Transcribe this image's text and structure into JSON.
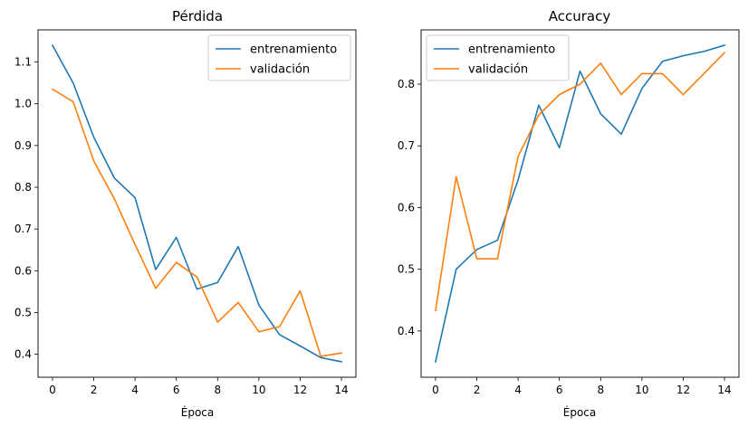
{
  "chart_data": [
    {
      "type": "line",
      "title": "Pérdida",
      "xlabel": "Época",
      "ylabel": "",
      "xlim": [
        -0.7,
        14.7
      ],
      "ylim": [
        0.345,
        1.177
      ],
      "xticks": [
        0,
        2,
        4,
        6,
        8,
        10,
        12,
        14
      ],
      "yticks": [
        0.4,
        0.5,
        0.6,
        0.7,
        0.8,
        0.9,
        1.0,
        1.1
      ],
      "ytick_labels": [
        "0.4",
        "0.5",
        "0.6",
        "0.7",
        "0.8",
        "0.9",
        "1.0",
        "1.1"
      ],
      "grid": false,
      "legend_position": "top-right",
      "x": [
        0,
        1,
        2,
        3,
        4,
        5,
        6,
        7,
        8,
        9,
        10,
        11,
        12,
        13,
        14
      ],
      "series": [
        {
          "name": "entrenamiento",
          "color": "#1f77b4",
          "values": [
            1.14,
            1.05,
            0.92,
            0.822,
            0.775,
            0.603,
            0.68,
            0.556,
            0.572,
            0.658,
            0.518,
            0.447,
            0.42,
            0.392,
            0.382
          ]
        },
        {
          "name": "validación",
          "color": "#ff7f0e",
          "values": [
            1.035,
            1.005,
            0.863,
            0.772,
            0.663,
            0.558,
            0.62,
            0.585,
            0.477,
            0.524,
            0.454,
            0.466,
            0.552,
            0.395,
            0.403
          ]
        }
      ]
    },
    {
      "type": "line",
      "title": "Accuracy",
      "xlabel": "Época",
      "ylabel": "",
      "xlim": [
        -0.7,
        14.7
      ],
      "ylim": [
        0.325,
        0.888
      ],
      "xticks": [
        0,
        2,
        4,
        6,
        8,
        10,
        12,
        14
      ],
      "yticks": [
        0.4,
        0.5,
        0.6,
        0.7,
        0.8
      ],
      "ytick_labels": [
        "0.4",
        "0.5",
        "0.6",
        "0.7",
        "0.8"
      ],
      "grid": false,
      "legend_position": "top-left",
      "x": [
        0,
        1,
        2,
        3,
        4,
        5,
        6,
        7,
        8,
        9,
        10,
        11,
        12,
        13,
        14
      ],
      "series": [
        {
          "name": "entrenamiento",
          "color": "#1f77b4",
          "values": [
            0.35,
            0.5,
            0.532,
            0.547,
            0.645,
            0.766,
            0.697,
            0.821,
            0.752,
            0.719,
            0.793,
            0.837,
            0.846,
            0.853,
            0.863
          ]
        },
        {
          "name": "validación",
          "color": "#ff7f0e",
          "values": [
            0.433,
            0.65,
            0.517,
            0.517,
            0.683,
            0.75,
            0.783,
            0.8,
            0.834,
            0.783,
            0.817,
            0.817,
            0.783,
            0.817,
            0.851
          ]
        }
      ]
    }
  ]
}
